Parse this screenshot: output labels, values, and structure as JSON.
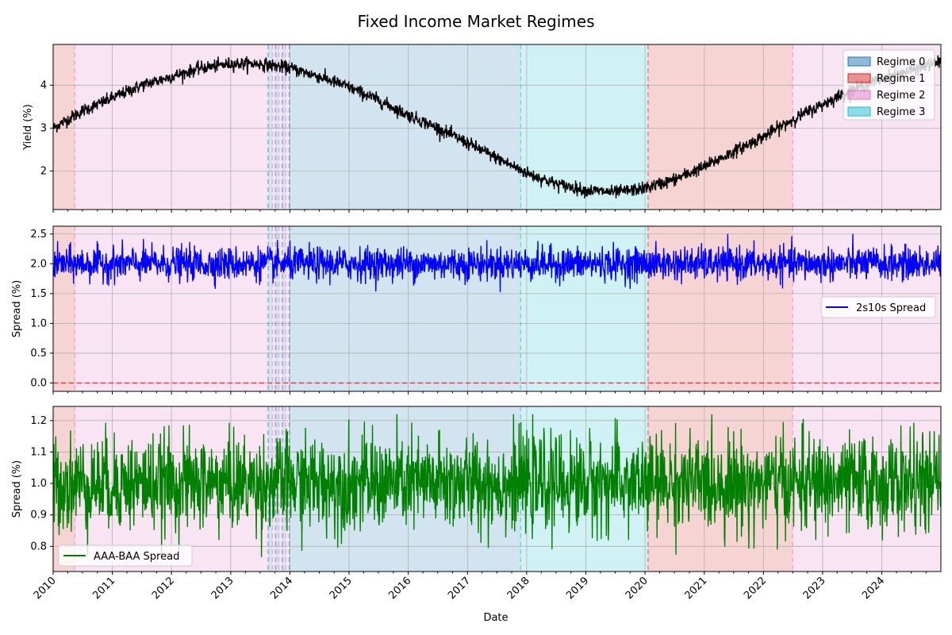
{
  "figure": {
    "title": "Fixed Income Market Regimes",
    "xlabel": "Date"
  },
  "colors": {
    "regime_0": "#1f77b4",
    "regime_1": "#d62728",
    "regime_2": "#e377c2",
    "regime_3": "#17becf",
    "yield_line": "#000000",
    "spread_2s10s_line": "#0000ff",
    "aaa_baa_line": "#008000",
    "zero_line": "#ff0000",
    "grid": "#b0b0b0"
  },
  "chart_data": [
    {
      "type": "line",
      "title": "",
      "xlabel": "",
      "ylabel": "Yield (%)",
      "xlim": [
        "2010-01-01",
        "2024-12-31"
      ],
      "ylim": [
        1.1,
        4.95
      ],
      "yticks": [
        2,
        3,
        4
      ],
      "xticks": [
        "2010",
        "2011",
        "2012",
        "2013",
        "2014",
        "2015",
        "2016",
        "2017",
        "2018",
        "2019",
        "2020",
        "2021",
        "2022",
        "2023",
        "2024"
      ],
      "grid": true,
      "legend_position": "upper right",
      "legend": [
        {
          "label": "Regime 0",
          "color": "#1f77b4"
        },
        {
          "label": "Regime 1",
          "color": "#d62728"
        },
        {
          "label": "Regime 2",
          "color": "#e377c2"
        },
        {
          "label": "Regime 3",
          "color": "#17becf"
        }
      ],
      "series": [
        {
          "x": [
            "2010-01-01",
            "2010-07-01",
            "2011-01-01",
            "2011-07-01",
            "2012-01-01",
            "2012-07-01",
            "2013-01-01",
            "2013-07-01",
            "2014-01-01",
            "2014-07-01",
            "2015-01-01",
            "2015-07-01",
            "2016-01-01",
            "2016-07-01",
            "2017-01-01",
            "2017-07-01",
            "2018-01-01",
            "2018-07-01",
            "2019-01-01",
            "2019-07-01",
            "2020-01-01",
            "2020-07-01",
            "2021-01-01",
            "2021-07-01",
            "2022-01-01",
            "2022-07-01",
            "2023-01-01",
            "2023-07-01",
            "2024-01-01",
            "2024-07-01",
            "2024-12-31"
          ],
          "values": [
            3.0,
            3.4,
            3.7,
            4.0,
            4.2,
            4.4,
            4.5,
            4.5,
            4.4,
            4.2,
            3.95,
            3.65,
            3.3,
            3.0,
            2.65,
            2.3,
            1.95,
            1.7,
            1.55,
            1.5,
            1.6,
            1.8,
            2.1,
            2.45,
            2.8,
            3.2,
            3.55,
            3.9,
            4.15,
            4.35,
            4.55
          ]
        }
      ]
    },
    {
      "type": "line",
      "title": "",
      "xlabel": "",
      "ylabel": "Spread (%)",
      "xlim": [
        "2010-01-01",
        "2024-12-31"
      ],
      "ylim": [
        -0.14,
        2.63
      ],
      "yticks": [
        0.0,
        0.5,
        1.0,
        1.5,
        2.0,
        2.5
      ],
      "grid": true,
      "legend_position": "center right",
      "series": [
        {
          "name": "2s10s Spread",
          "mean": 2.0,
          "range": [
            1.45,
            2.5
          ]
        }
      ],
      "reference_line": {
        "y": 0.0,
        "style": "dashed"
      }
    },
    {
      "type": "line",
      "title": "",
      "xlabel": "Date",
      "ylabel": "Spread (%)",
      "xlim": [
        "2010-01-01",
        "2024-12-31"
      ],
      "ylim": [
        0.72,
        1.245
      ],
      "yticks": [
        0.8,
        0.9,
        1.0,
        1.1,
        1.2
      ],
      "xticks": [
        "2010",
        "2011",
        "2012",
        "2013",
        "2014",
        "2015",
        "2016",
        "2017",
        "2018",
        "2019",
        "2020",
        "2021",
        "2022",
        "2023",
        "2024"
      ],
      "grid": true,
      "legend_position": "lower left",
      "series": [
        {
          "name": "AAA-BAA Spread",
          "mean": 1.0,
          "range": [
            0.75,
            1.22
          ]
        }
      ]
    }
  ],
  "regimes": [
    {
      "regime": 1,
      "start": "2010-01-01",
      "end": "2010-05-15"
    },
    {
      "regime": 2,
      "start": "2010-05-15",
      "end": "2013-08-20"
    },
    {
      "regime": 0,
      "start": "2013-08-20",
      "end": "2013-09-15"
    },
    {
      "regime": 2,
      "start": "2013-09-15",
      "end": "2013-10-05"
    },
    {
      "regime": 0,
      "start": "2013-10-05",
      "end": "2013-10-25"
    },
    {
      "regime": 2,
      "start": "2013-10-25",
      "end": "2013-11-15"
    },
    {
      "regime": 0,
      "start": "2013-11-15",
      "end": "2013-12-05"
    },
    {
      "regime": 2,
      "start": "2013-12-05",
      "end": "2013-12-28"
    },
    {
      "regime": 0,
      "start": "2013-12-28",
      "end": "2017-11-25"
    },
    {
      "regime": 3,
      "start": "2017-11-25",
      "end": "2020-01-20"
    },
    {
      "regime": 1,
      "start": "2020-01-20",
      "end": "2022-07-01"
    },
    {
      "regime": 2,
      "start": "2022-07-01",
      "end": "2024-12-31"
    }
  ]
}
